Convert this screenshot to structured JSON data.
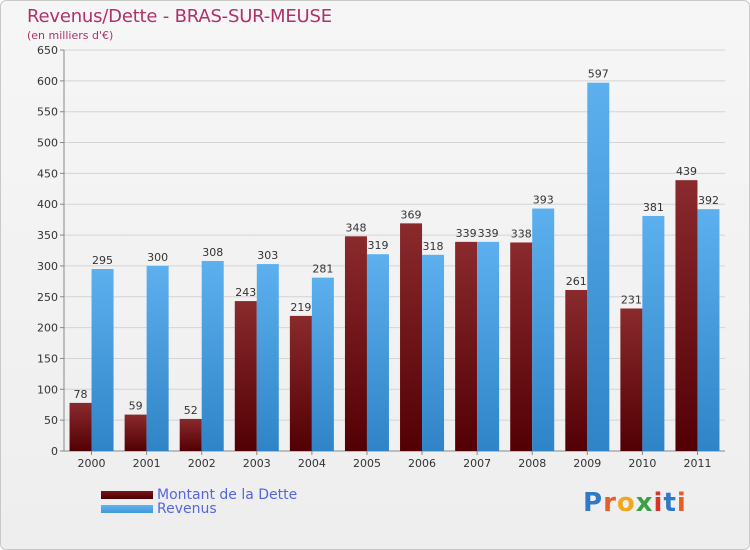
{
  "title": "Revenus/Dette - BRAS-SUR-MEUSE",
  "subtitle": "(en milliers d'€)",
  "brand": {
    "letters": [
      "P",
      "r",
      "o",
      "x",
      "i",
      "t",
      "i"
    ],
    "colors": [
      "#2f79c6",
      "#e85c2a",
      "#f0a81c",
      "#3aa045",
      "#d8342c",
      "#2f79c6",
      "#e85c2a"
    ]
  },
  "legend": [
    {
      "label": "Montant de la Dette",
      "color": "#6b0f12"
    },
    {
      "label": "Revenus",
      "color": "#4aa3e6"
    }
  ],
  "chart_data": {
    "type": "bar",
    "categories": [
      "2000",
      "2001",
      "2002",
      "2003",
      "2004",
      "2005",
      "2006",
      "2007",
      "2008",
      "2009",
      "2010",
      "2011"
    ],
    "series": [
      {
        "name": "Montant de la Dette",
        "values": [
          78,
          59,
          52,
          243,
          219,
          348,
          369,
          339,
          338,
          261,
          231,
          439
        ],
        "color": "#6b0f12"
      },
      {
        "name": "Revenus",
        "values": [
          295,
          300,
          308,
          303,
          281,
          319,
          318,
          339,
          393,
          597,
          381,
          392
        ],
        "color": "#4aa3e6"
      }
    ],
    "ylim": [
      0,
      650
    ],
    "ystep": 50,
    "yticks": [
      "0",
      "50",
      "100",
      "150",
      "200",
      "250",
      "300",
      "350",
      "400",
      "450",
      "500",
      "550",
      "600",
      "650"
    ],
    "grid": true,
    "legend_position": "bottom-left"
  }
}
